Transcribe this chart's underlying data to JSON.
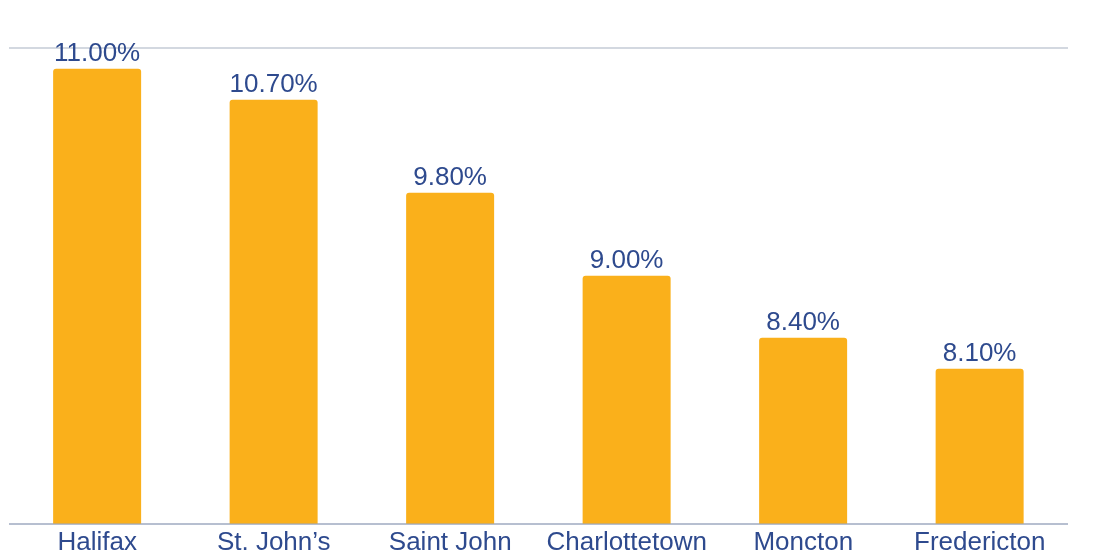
{
  "chart_data": {
    "type": "bar",
    "categories": [
      "Halifax",
      "St. John’s",
      "Saint John",
      "Charlottetown",
      "Moncton",
      "Fredericton"
    ],
    "values": [
      11.0,
      10.7,
      9.8,
      9.0,
      8.4,
      8.1
    ],
    "color": "#fab01b",
    "value_labels": [
      "11.00%",
      "10.70%",
      "9.80%",
      "9.00%",
      "8.40%",
      "8.10%"
    ],
    "ylim": [
      6.6,
      11.2
    ],
    "grid": "y",
    "tick_labels": "x"
  }
}
